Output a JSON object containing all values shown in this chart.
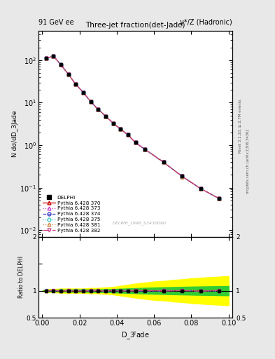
{
  "title_main": "Three-jet fraction(det-Jade)",
  "header_left": "91 GeV ee",
  "header_right": "γ*/Z (Hadronic)",
  "right_label_top": "Rivet 3.1.10, ≥ 2.7M events",
  "right_label_bottom": "mcplots.cern.ch [arXiv:1306.3436]",
  "watermark": "DELPHI_1996_S3430090",
  "ylabel_main": "N dσ/dD_3Jade",
  "ylabel_ratio": "Ratio to DELPHI",
  "x_data": [
    0.002,
    0.006,
    0.01,
    0.014,
    0.018,
    0.022,
    0.026,
    0.03,
    0.034,
    0.038,
    0.042,
    0.046,
    0.05,
    0.055,
    0.065,
    0.075,
    0.085,
    0.095
  ],
  "y_data": [
    110,
    125,
    78,
    47,
    27,
    17.5,
    10.5,
    7.0,
    4.8,
    3.3,
    2.4,
    1.75,
    1.15,
    0.8,
    0.4,
    0.185,
    0.095,
    0.055
  ],
  "y_err": [
    6,
    7,
    4,
    2.5,
    1.5,
    1.0,
    0.7,
    0.45,
    0.3,
    0.22,
    0.16,
    0.11,
    0.08,
    0.055,
    0.028,
    0.014,
    0.008,
    0.006
  ],
  "lines": [
    {
      "label": "Pythia 6.428 370",
      "color": "#cc0000",
      "linestyle": "-",
      "marker": "^",
      "mfc": "none",
      "ms": 3.5
    },
    {
      "label": "Pythia 6.428 373",
      "color": "#cc44cc",
      "linestyle": ":",
      "marker": "^",
      "mfc": "none",
      "ms": 3.5
    },
    {
      "label": "Pythia 6.428 374",
      "color": "#4444cc",
      "linestyle": "--",
      "marker": "o",
      "mfc": "none",
      "ms": 3.5
    },
    {
      "label": "Pythia 6.428 375",
      "color": "#44cccc",
      "linestyle": ":",
      "marker": "o",
      "mfc": "none",
      "ms": 3.5
    },
    {
      "label": "Pythia 6.428 381",
      "color": "#cc8844",
      "linestyle": ":",
      "marker": "^",
      "mfc": "none",
      "ms": 3.5
    },
    {
      "label": "Pythia 6.428 382",
      "color": "#cc4488",
      "linestyle": "-.",
      "marker": "v",
      "mfc": "none",
      "ms": 3.5
    }
  ],
  "ratio_x": [
    0.0,
    0.002,
    0.006,
    0.01,
    0.014,
    0.018,
    0.022,
    0.026,
    0.03,
    0.034,
    0.038,
    0.042,
    0.046,
    0.05,
    0.055,
    0.06,
    0.065,
    0.07,
    0.075,
    0.08,
    0.085,
    0.09,
    0.095,
    0.1
  ],
  "ratio_band_yellow_y1": [
    1.0,
    0.97,
    0.97,
    0.96,
    0.96,
    0.96,
    0.96,
    0.95,
    0.95,
    0.94,
    0.93,
    0.91,
    0.89,
    0.87,
    0.85,
    0.83,
    0.82,
    0.8,
    0.79,
    0.77,
    0.76,
    0.75,
    0.74,
    0.73
  ],
  "ratio_band_yellow_y2": [
    1.0,
    1.03,
    1.03,
    1.04,
    1.04,
    1.04,
    1.04,
    1.05,
    1.05,
    1.06,
    1.07,
    1.09,
    1.11,
    1.13,
    1.15,
    1.17,
    1.18,
    1.2,
    1.21,
    1.23,
    1.24,
    1.25,
    1.26,
    1.27
  ],
  "ratio_band_green_y1": [
    1.0,
    0.985,
    0.985,
    0.982,
    0.98,
    0.979,
    0.978,
    0.977,
    0.975,
    0.972,
    0.968,
    0.963,
    0.958,
    0.953,
    0.947,
    0.942,
    0.937,
    0.933,
    0.929,
    0.925,
    0.922,
    0.919,
    0.916,
    0.914
  ],
  "ratio_band_green_y2": [
    1.0,
    1.015,
    1.015,
    1.018,
    1.02,
    1.021,
    1.022,
    1.023,
    1.025,
    1.028,
    1.032,
    1.037,
    1.042,
    1.047,
    1.053,
    1.058,
    1.063,
    1.067,
    1.071,
    1.075,
    1.078,
    1.081,
    1.084,
    1.086
  ],
  "ylim_main": [
    0.007,
    500
  ],
  "ylim_ratio": [
    0.5,
    2.0
  ],
  "xlim": [
    -0.002,
    0.102
  ],
  "bg_color": "#e8e8e8",
  "plot_bg": "#ffffff"
}
